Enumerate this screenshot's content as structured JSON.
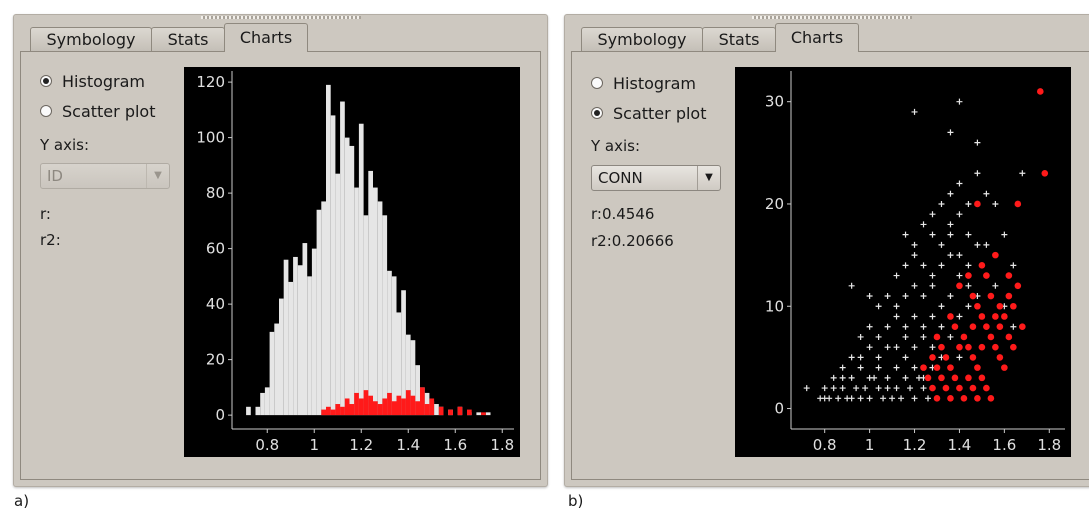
{
  "panels": {
    "a": {
      "tabs": [
        {
          "label": "Symbology"
        },
        {
          "label": "Stats"
        },
        {
          "label": "Charts"
        }
      ],
      "active_tab": 2,
      "radios": [
        {
          "label": "Histogram",
          "checked": true
        },
        {
          "label": "Scatter plot",
          "checked": false
        }
      ],
      "y_axis_label": "Y axis:",
      "y_axis_value": "ID",
      "r": "r:",
      "r2": "r2:",
      "caption": "a)"
    },
    "b": {
      "tabs": [
        {
          "label": "Symbology"
        },
        {
          "label": "Stats"
        },
        {
          "label": "Charts"
        }
      ],
      "active_tab": 2,
      "radios": [
        {
          "label": "Histogram",
          "checked": false
        },
        {
          "label": "Scatter plot",
          "checked": true
        }
      ],
      "y_axis_label": "Y axis:",
      "y_axis_value": "CONN",
      "r": "r:0.4546",
      "r2": "r2:0.20666",
      "caption": "b)"
    }
  },
  "colors": {
    "highlight": "#ff1a1a",
    "base": "#e6e6e6",
    "plot_bg": "#000000",
    "axis": "#cccccc"
  },
  "chart_data": [
    {
      "type": "bar",
      "series": [
        {
          "name": "",
          "x": [
            0.72,
            0.76,
            0.78,
            0.8,
            0.82,
            0.84,
            0.86,
            0.88,
            0.9,
            0.92,
            0.94,
            0.96,
            0.98,
            1.0,
            1.02,
            1.04,
            1.06,
            1.08,
            1.1,
            1.12,
            1.14,
            1.16,
            1.18,
            1.2,
            1.22,
            1.24,
            1.26,
            1.28,
            1.3,
            1.32,
            1.34,
            1.36,
            1.38,
            1.4,
            1.42,
            1.44,
            1.46,
            1.48,
            1.5,
            1.52,
            1.54,
            1.58,
            1.62,
            1.66,
            1.7,
            1.74
          ],
          "values": [
            3,
            3,
            8,
            10,
            30,
            33,
            42,
            56,
            48,
            57,
            54,
            62,
            50,
            60,
            74,
            77,
            119,
            108,
            87,
            113,
            100,
            97,
            82,
            105,
            72,
            88,
            82,
            77,
            72,
            52,
            50,
            37,
            45,
            29,
            27,
            18,
            10,
            8,
            5,
            4,
            3,
            2,
            3,
            1,
            1,
            1
          ]
        },
        {
          "name": "",
          "x": [
            1.04,
            1.06,
            1.08,
            1.1,
            1.12,
            1.14,
            1.16,
            1.18,
            1.2,
            1.22,
            1.24,
            1.26,
            1.28,
            1.3,
            1.32,
            1.34,
            1.36,
            1.38,
            1.4,
            1.42,
            1.44,
            1.46,
            1.48,
            1.5,
            1.54,
            1.58,
            1.62,
            1.66,
            1.72
          ],
          "values": [
            2,
            3,
            2,
            4,
            3,
            6,
            4,
            8,
            6,
            9,
            7,
            5,
            4,
            6,
            8,
            5,
            7,
            6,
            9,
            7,
            5,
            10,
            4,
            6,
            3,
            2,
            3,
            2,
            1
          ]
        }
      ],
      "xlim": [
        0.65,
        1.85
      ],
      "ylim": [
        -5,
        124
      ],
      "xticks": [
        0.8,
        1,
        1.2,
        1.4,
        1.6,
        1.8
      ],
      "xtick_labels": [
        "0.8",
        "1",
        "1.2",
        "1.4",
        "1.6",
        "1.8"
      ],
      "yticks": [
        0,
        20,
        40,
        60,
        80,
        100,
        120
      ],
      "ytick_labels": [
        "0",
        "20",
        "40",
        "60",
        "80",
        "100",
        "120"
      ],
      "bin_width": 0.02
    },
    {
      "type": "scatter",
      "series": [
        {
          "name": "",
          "points": [
            [
              0.72,
              2
            ],
            [
              0.78,
              1
            ],
            [
              0.8,
              1
            ],
            [
              0.82,
              1
            ],
            [
              0.84,
              2
            ],
            [
              0.86,
              1
            ],
            [
              0.88,
              2
            ],
            [
              0.9,
              1
            ],
            [
              0.92,
              1
            ],
            [
              0.94,
              2
            ],
            [
              0.96,
              1
            ],
            [
              0.98,
              2
            ],
            [
              1.0,
              1
            ],
            [
              1.02,
              3
            ],
            [
              1.04,
              2
            ],
            [
              1.06,
              1
            ],
            [
              1.08,
              2
            ],
            [
              1.1,
              1
            ],
            [
              1.12,
              2
            ],
            [
              1.14,
              1
            ],
            [
              1.16,
              3
            ],
            [
              1.18,
              2
            ],
            [
              1.2,
              1
            ],
            [
              1.22,
              3
            ],
            [
              1.24,
              2
            ],
            [
              1.26,
              1
            ],
            [
              0.8,
              2
            ],
            [
              0.84,
              3
            ],
            [
              0.88,
              3
            ],
            [
              0.92,
              3
            ],
            [
              0.96,
              4
            ],
            [
              1.0,
              3
            ],
            [
              1.04,
              4
            ],
            [
              1.08,
              3
            ],
            [
              1.12,
              4
            ],
            [
              1.16,
              5
            ],
            [
              1.2,
              4
            ],
            [
              1.24,
              3
            ],
            [
              1.28,
              4
            ],
            [
              1.32,
              3
            ],
            [
              0.88,
              4
            ],
            [
              0.92,
              5
            ],
            [
              0.96,
              5
            ],
            [
              1.0,
              6
            ],
            [
              1.04,
              5
            ],
            [
              1.08,
              6
            ],
            [
              1.12,
              6
            ],
            [
              1.16,
              7
            ],
            [
              1.2,
              6
            ],
            [
              1.24,
              7
            ],
            [
              1.28,
              6
            ],
            [
              1.32,
              5
            ],
            [
              1.36,
              4
            ],
            [
              0.96,
              7
            ],
            [
              1.0,
              8
            ],
            [
              1.04,
              7
            ],
            [
              1.08,
              8
            ],
            [
              1.12,
              9
            ],
            [
              1.16,
              8
            ],
            [
              1.2,
              9
            ],
            [
              1.24,
              8
            ],
            [
              1.28,
              9
            ],
            [
              1.32,
              8
            ],
            [
              1.36,
              7
            ],
            [
              1.4,
              5
            ],
            [
              1.04,
              10
            ],
            [
              1.08,
              11
            ],
            [
              1.12,
              10
            ],
            [
              1.16,
              11
            ],
            [
              1.2,
              12
            ],
            [
              1.24,
              11
            ],
            [
              1.28,
              12
            ],
            [
              1.32,
              10
            ],
            [
              1.36,
              11
            ],
            [
              1.4,
              9
            ],
            [
              1.44,
              10
            ],
            [
              0.92,
              12
            ],
            [
              1.0,
              11
            ],
            [
              1.12,
              13
            ],
            [
              1.16,
              14
            ],
            [
              1.2,
              15
            ],
            [
              1.24,
              14
            ],
            [
              1.28,
              13
            ],
            [
              1.32,
              14
            ],
            [
              1.36,
              15
            ],
            [
              1.4,
              13
            ],
            [
              1.44,
              12
            ],
            [
              1.48,
              11
            ],
            [
              1.16,
              17
            ],
            [
              1.2,
              16
            ],
            [
              1.24,
              18
            ],
            [
              1.28,
              17
            ],
            [
              1.32,
              16
            ],
            [
              1.36,
              17
            ],
            [
              1.4,
              15
            ],
            [
              1.44,
              14
            ],
            [
              1.28,
              19
            ],
            [
              1.32,
              20
            ],
            [
              1.36,
              18
            ],
            [
              1.4,
              19
            ],
            [
              1.44,
              17
            ],
            [
              1.48,
              16
            ],
            [
              1.36,
              21
            ],
            [
              1.4,
              22
            ],
            [
              1.44,
              20
            ],
            [
              1.48,
              23
            ],
            [
              1.52,
              21
            ],
            [
              1.56,
              20
            ],
            [
              1.2,
              29
            ],
            [
              1.36,
              27
            ],
            [
              1.4,
              30
            ],
            [
              1.48,
              26
            ],
            [
              1.68,
              23
            ],
            [
              1.52,
              16
            ],
            [
              1.6,
              17
            ],
            [
              1.64,
              14
            ],
            [
              1.56,
              12
            ],
            [
              1.6,
              10
            ],
            [
              1.64,
              8
            ]
          ]
        },
        {
          "name": "",
          "points": [
            [
              1.76,
              31
            ],
            [
              1.78,
              23
            ],
            [
              1.66,
              20
            ],
            [
              1.48,
              20
            ],
            [
              1.5,
              14
            ],
            [
              1.56,
              15
            ],
            [
              1.62,
              13
            ],
            [
              1.66,
              12
            ],
            [
              1.68,
              8
            ],
            [
              1.52,
              13
            ],
            [
              1.54,
              11
            ],
            [
              1.58,
              10
            ],
            [
              1.6,
              9
            ],
            [
              1.62,
              11
            ],
            [
              1.64,
              10
            ],
            [
              1.4,
              12
            ],
            [
              1.44,
              13
            ],
            [
              1.46,
              11
            ],
            [
              1.48,
              10
            ],
            [
              1.5,
              9
            ],
            [
              1.52,
              8
            ],
            [
              1.54,
              7
            ],
            [
              1.56,
              6
            ],
            [
              1.58,
              5
            ],
            [
              1.6,
              4
            ],
            [
              1.36,
              9
            ],
            [
              1.38,
              8
            ],
            [
              1.42,
              7
            ],
            [
              1.44,
              6
            ],
            [
              1.46,
              5
            ],
            [
              1.48,
              4
            ],
            [
              1.5,
              3
            ],
            [
              1.52,
              2
            ],
            [
              1.54,
              1
            ],
            [
              1.3,
              7
            ],
            [
              1.32,
              6
            ],
            [
              1.34,
              5
            ],
            [
              1.36,
              4
            ],
            [
              1.38,
              3
            ],
            [
              1.4,
              2
            ],
            [
              1.42,
              1
            ],
            [
              1.28,
              5
            ],
            [
              1.3,
              4
            ],
            [
              1.32,
              3
            ],
            [
              1.34,
              2
            ],
            [
              1.36,
              1
            ],
            [
              1.4,
              6
            ],
            [
              1.46,
              8
            ],
            [
              1.5,
              6
            ],
            [
              1.56,
              9
            ],
            [
              1.62,
              7
            ],
            [
              1.24,
              4
            ],
            [
              1.26,
              3
            ],
            [
              1.28,
              2
            ],
            [
              1.3,
              1
            ],
            [
              1.44,
              3
            ],
            [
              1.46,
              2
            ],
            [
              1.48,
              1
            ],
            [
              1.58,
              8
            ],
            [
              1.64,
              6
            ]
          ]
        }
      ],
      "xlim": [
        0.65,
        1.87
      ],
      "ylim": [
        -2,
        33
      ],
      "xticks": [
        0.8,
        1,
        1.2,
        1.4,
        1.6,
        1.8
      ],
      "xtick_labels": [
        "0.8",
        "1",
        "1.2",
        "1.4",
        "1.6",
        "1.8"
      ],
      "yticks": [
        0,
        10,
        20,
        30
      ],
      "ytick_labels": [
        "0",
        "10",
        "20",
        "30"
      ]
    }
  ]
}
